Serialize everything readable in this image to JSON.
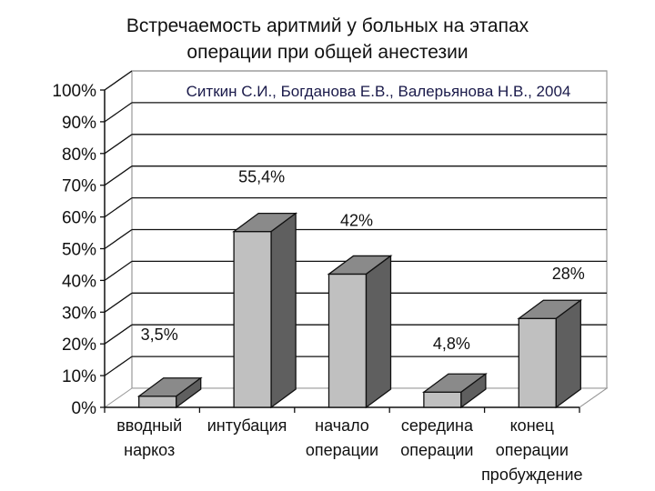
{
  "chart_data": {
    "type": "bar",
    "style": "3d-column",
    "title": "Встречаемость аритмий у больных на этапах операции при общей анестезии",
    "title_lines": [
      "Встречаемость аритмий у больных на этапах",
      "операции при общей анестезии"
    ],
    "annotation": "Ситкин С.И., Богданова Е.В., Валерьянова Н.В., 2004",
    "annotation_color": "#1a1a4a",
    "categories": [
      [
        "вводный",
        "наркоз"
      ],
      [
        "интубация"
      ],
      [
        "начало",
        "операции"
      ],
      [
        "середина",
        "операции"
      ],
      [
        "конец",
        "операции",
        "пробуждение"
      ]
    ],
    "category_labels": [
      "вводный наркоз",
      "интубация",
      "начало операции",
      "середина операции",
      "конец операции пробуждение"
    ],
    "values": [
      3.5,
      55.4,
      42,
      4.8,
      28
    ],
    "data_labels": [
      "3,5%",
      "55,4%",
      "42%",
      "4,8%",
      "28%"
    ],
    "yticks": [
      "0%",
      "10%",
      "20%",
      "30%",
      "40%",
      "50%",
      "60%",
      "70%",
      "80%",
      "90%",
      "100%"
    ],
    "ylim": [
      0,
      100
    ],
    "xlabel": "",
    "ylabel": "",
    "grid": true,
    "legend": "none",
    "colors": {
      "front": "#c0c0c0",
      "top": "#8a8a8a",
      "side": "#5f5f5f",
      "grid": "#111111"
    }
  }
}
